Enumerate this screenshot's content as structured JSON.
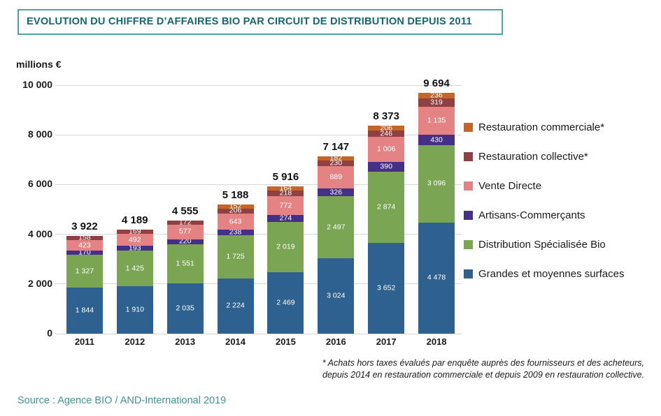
{
  "title": "EVOLUTION DU CHIFFRE D’AFFAIRES BIO PAR CIRCUIT DE DISTRIBUTION DEPUIS 2011",
  "y_axis_label": "millions €",
  "source": "Source : Agence BIO / AND-International 2019",
  "footnote": {
    "line1": "* Achats hors taxes évalués par enquête auprès des fournisseurs et des acheteurs,",
    "line2": "depuis 2014 en restauration commerciale et  depuis 2009 en restauration collective."
  },
  "colors": {
    "title_text": "#17666e",
    "title_border": "#4ba5a0",
    "source_text": "#42929a",
    "gridline": "#d6d6d6",
    "axis_text": "#1a1a1a"
  },
  "chart_data": {
    "type": "bar",
    "stacked": true,
    "categories": [
      "2011",
      "2012",
      "2013",
      "2014",
      "2015",
      "2016",
      "2017",
      "2018"
    ],
    "totals": [
      3922,
      4189,
      4555,
      5188,
      5916,
      7147,
      8373,
      9694
    ],
    "series": [
      {
        "name": "Grandes et moyennes surfaces",
        "color": "#2e618f",
        "values": [
          1844,
          1910,
          2035,
          2224,
          2469,
          3024,
          3652,
          4478
        ]
      },
      {
        "name": "Distribution Spécialisée Bio",
        "color": "#7aa552",
        "values": [
          1327,
          1425,
          1551,
          1725,
          2019,
          2497,
          2874,
          3096
        ]
      },
      {
        "name": "Artisans-Commerçants",
        "color": "#452f87",
        "values": [
          170,
          193,
          220,
          238,
          274,
          326,
          390,
          430
        ]
      },
      {
        "name": "Vente Directe",
        "color": "#e58384",
        "values": [
          423,
          492,
          577,
          643,
          772,
          889,
          1006,
          1135
        ]
      },
      {
        "name": "Restauration collective*",
        "color": "#8f4042",
        "values": [
          158,
          169,
          172,
          206,
          218,
          230,
          246,
          319
        ]
      },
      {
        "name": "Restauration commerciale*",
        "color": "#c56528",
        "values": [
          0,
          0,
          0,
          152,
          164,
          182,
          206,
          236
        ]
      }
    ],
    "ylim": [
      0,
      10000
    ],
    "yticks": [
      0,
      2000,
      4000,
      6000,
      8000,
      10000
    ],
    "grid": true,
    "legend_position": "right",
    "legend_order_top_to_bottom": [
      "Restauration commerciale*",
      "Restauration collective*",
      "Vente Directe",
      "Artisans-Commerçants",
      "Distribution Spécialisée Bio",
      "Grandes et moyennes surfaces"
    ]
  }
}
